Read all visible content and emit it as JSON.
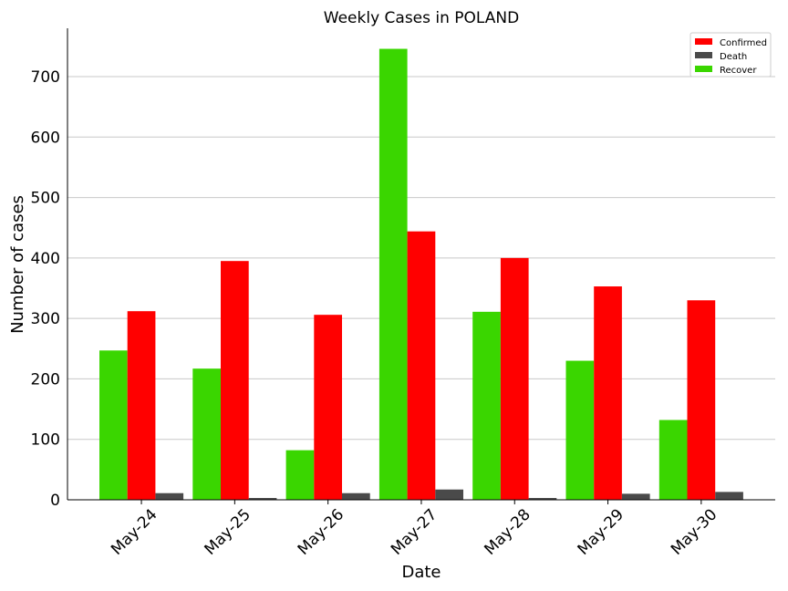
{
  "chart_data": {
    "type": "bar",
    "title": "Weekly Cases in POLAND",
    "xlabel": "Date",
    "ylabel": "Number of cases",
    "categories": [
      "May-24",
      "May-25",
      "May-26",
      "May-27",
      "May-28",
      "May-29",
      "May-30"
    ],
    "series": [
      {
        "name": "Recover",
        "color": "#3ad600",
        "values": [
          247,
          217,
          82,
          746,
          311,
          230,
          132
        ]
      },
      {
        "name": "Confirmed",
        "color": "#ff0000",
        "values": [
          312,
          395,
          306,
          444,
          400,
          353,
          330
        ]
      },
      {
        "name": "Death",
        "color": "#4a4a4a",
        "values": [
          11,
          3,
          11,
          17,
          3,
          10,
          13
        ]
      }
    ],
    "legend_order": [
      "Confirmed",
      "Death",
      "Recover"
    ],
    "ylim": [
      0,
      780
    ],
    "yticks": [
      0,
      100,
      200,
      300,
      400,
      500,
      600,
      700
    ],
    "grid": "horizontal",
    "legend_position": "top-right"
  }
}
